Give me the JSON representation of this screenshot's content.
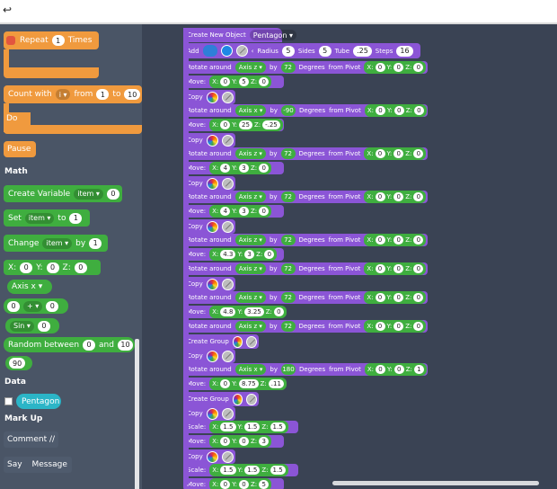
{
  "topbar": {
    "back_label": "↩"
  },
  "sidebar": {
    "repeat": {
      "label": "Repeat",
      "count": "1",
      "suffix": "Times"
    },
    "count_with": {
      "label": "Count with",
      "var": "i ▾",
      "from_label": "from",
      "from": "1",
      "to_label": "to",
      "to": "10",
      "do_label": "Do"
    },
    "pause_label": "Pause",
    "math_title": "Math",
    "create_variable": {
      "label": "Create Variable",
      "var": "item ▾",
      "value": "0"
    },
    "set": {
      "label": "Set",
      "var": "item ▾",
      "to_label": "to",
      "value": "1"
    },
    "change": {
      "label": "Change",
      "var": "item ▾",
      "by_label": "by",
      "value": "1"
    },
    "xyz": {
      "x_label": "X:",
      "x": "0",
      "y_label": "Y:",
      "y": "0",
      "z_label": "Z:",
      "z": "0"
    },
    "axis": {
      "label": "Axis x ▾"
    },
    "arith": {
      "a": "0",
      "op": "+ ▾",
      "b": "0"
    },
    "sin": {
      "label": "Sin ▾",
      "value": "0"
    },
    "random": {
      "label": "Random between",
      "a": "0",
      "and_label": "and",
      "b": "10"
    },
    "number": {
      "value": "90"
    },
    "data_title": "Data",
    "pentagon_label": "Pentagon",
    "markup_title": "Mark Up",
    "comment_label": "Comment //",
    "say_label": "Say",
    "message_label": "Message"
  },
  "workspace": {
    "create_object": {
      "label": "Create New Object",
      "name": "Pentagon ▾"
    },
    "add_row": {
      "add_label": "Add",
      "radius_label": "Radius",
      "radius": "5",
      "sides_label": "Sides",
      "sides": "5",
      "tube_label": "Tube",
      "tube": ".25",
      "steps_label": "Steps",
      "steps": "16"
    },
    "rows": [
      {
        "type": "rotate",
        "axis": "Axis z ▾",
        "deg": "72"
      },
      {
        "type": "move",
        "x": "0",
        "y": "5",
        "z": "0"
      },
      {
        "type": "copy"
      },
      {
        "type": "rotate",
        "axis": "Axis x ▾",
        "deg": "-90"
      },
      {
        "type": "move",
        "x": "0",
        "y": "25",
        "z": "-.25"
      },
      {
        "type": "copy"
      },
      {
        "type": "rotate",
        "axis": "Axis z ▾",
        "deg": "72"
      },
      {
        "type": "move",
        "x": "4",
        "y": "3",
        "z": "0"
      },
      {
        "type": "copy"
      },
      {
        "type": "rotate",
        "axis": "Axis z ▾",
        "deg": "72"
      },
      {
        "type": "move",
        "x": "4",
        "y": "3",
        "z": "0"
      },
      {
        "type": "copy"
      },
      {
        "type": "rotate",
        "axis": "Axis z ▾",
        "deg": "72"
      },
      {
        "type": "move",
        "x": "4.3",
        "y": "3",
        "z": "0"
      },
      {
        "type": "rotate",
        "axis": "Axis z ▾",
        "deg": "72"
      },
      {
        "type": "copy"
      },
      {
        "type": "rotate",
        "axis": "Axis z ▾",
        "deg": "72"
      },
      {
        "type": "move",
        "x": "4.8",
        "y": "3.25",
        "z": "0"
      },
      {
        "type": "rotate",
        "axis": "Axis z ▾",
        "deg": "72"
      },
      {
        "type": "group"
      },
      {
        "type": "copy"
      },
      {
        "type": "rotate",
        "axis": "Axis x ▾",
        "deg": "180"
      },
      {
        "type": "move",
        "x": "0",
        "y": "8.75",
        "z": ".11"
      },
      {
        "type": "group"
      },
      {
        "type": "copy"
      },
      {
        "type": "scale",
        "x": "1.5",
        "y": "1.5",
        "z": "1.5"
      },
      {
        "type": "move",
        "x": "0",
        "y": "0",
        "z": "3"
      },
      {
        "type": "copy"
      },
      {
        "type": "scale",
        "x": "1.5",
        "y": "1.5",
        "z": "1.5"
      },
      {
        "type": "move",
        "x": "0",
        "y": "0",
        "z": "5"
      }
    ],
    "labels": {
      "rotate": "Rotate around",
      "by": "by",
      "degrees": "Degrees",
      "from_pivot": "from Pivot",
      "move": "Move:",
      "copy": "Copy",
      "create_group": "Create Group",
      "scale": "Scale:",
      "x": "X:",
      "y": "Y:",
      "z": "Z:"
    },
    "pivot": {
      "x": "0",
      "y": "0",
      "z": "0"
    }
  },
  "colors": {
    "control": "#f09a3e",
    "math": "#3fae3f",
    "object": "#8b55d6",
    "data": "#2bb5c7"
  }
}
